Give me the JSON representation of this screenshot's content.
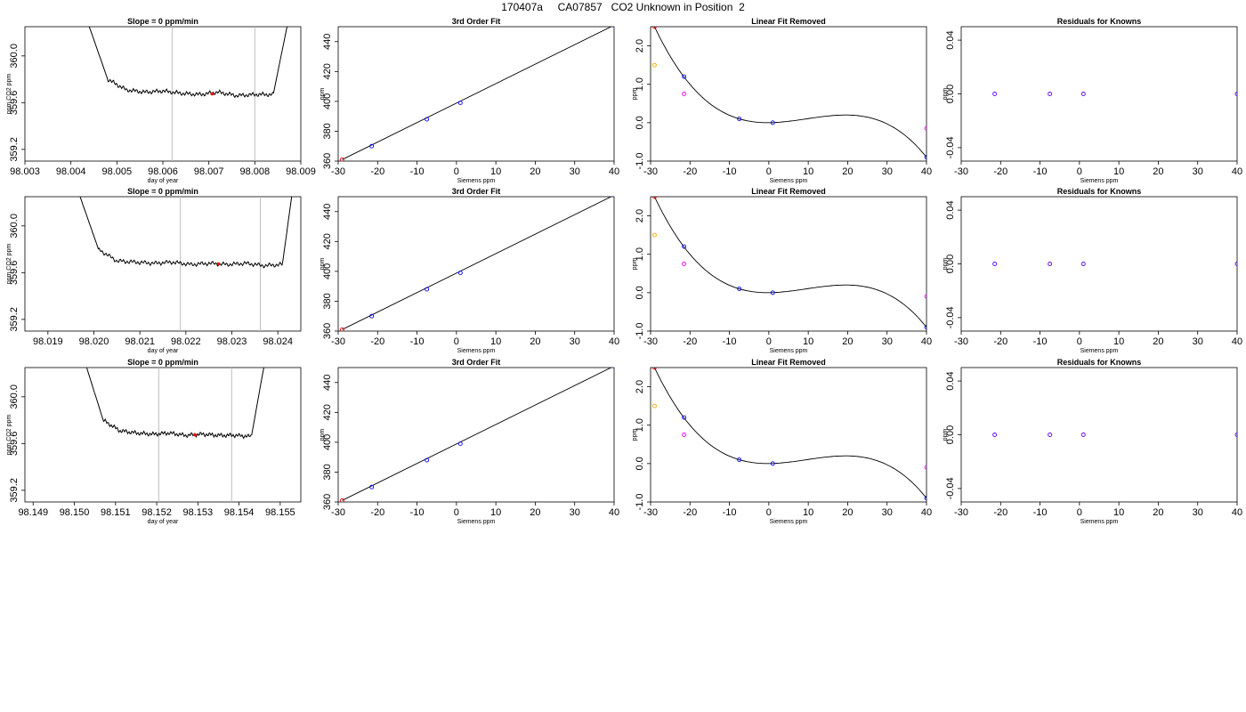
{
  "header": {
    "title": "170407a     CA07857   CO2 Unknown in Position  2"
  },
  "colors": {
    "trace": "#000000",
    "knowns": "#0000ff",
    "first": "#ff0000",
    "linear_points": "#ff00ff",
    "orange_point": "#ffa500",
    "window_lines": "#bebebe",
    "residuals": "#5a00ff"
  },
  "chart_data": [
    {
      "type": "line",
      "title": "Slope =  0  ppm/min",
      "xlabel": "day of year",
      "ylabel": "ppm CO2 ppm",
      "xlim": [
        98.003,
        98.009
      ],
      "ylim": [
        359.1,
        360.25
      ],
      "xticks": [
        "98.003",
        "98.004",
        "98.005",
        "98.006",
        "98.007",
        "98.008",
        "98.009"
      ],
      "yticks": [
        "359.2",
        "359.6",
        "360.0"
      ],
      "x": [
        98.0044,
        98.0048,
        98.0052,
        98.0056,
        98.006,
        98.0064,
        98.0068,
        98.0072,
        98.0076,
        98.008,
        98.0084,
        98.0087
      ],
      "y": [
        360.25,
        359.8,
        359.71,
        359.69,
        359.7,
        359.68,
        359.67,
        359.69,
        359.66,
        359.67,
        359.67,
        360.25
      ],
      "window": [
        98.0062,
        98.008
      ],
      "marker": {
        "x": 98.00707,
        "y": 359.675
      }
    },
    {
      "type": "scatter",
      "title": "3rd Order Fit",
      "xlabel": "Siemens ppm",
      "ylabel": "ppm",
      "xlim": [
        -30,
        40
      ],
      "ylim": [
        360,
        450
      ],
      "xticks": [
        "-30",
        "-20",
        "-10",
        "0",
        "10",
        "20",
        "30",
        "40"
      ],
      "yticks": [
        "360",
        "380",
        "400",
        "420",
        "440"
      ],
      "x": [
        -29,
        -21.5,
        -7.5,
        1,
        40
      ],
      "y": [
        361,
        370,
        388,
        399,
        451
      ],
      "fit": "line"
    },
    {
      "type": "scatter",
      "title": "Linear Fit Removed",
      "xlabel": "Siemens ppm",
      "ylabel": "ppm",
      "xlim": [
        -30,
        40
      ],
      "ylim": [
        -1,
        2.5
      ],
      "xticks": [
        "-30",
        "-20",
        "-10",
        "0",
        "10",
        "20",
        "30",
        "40"
      ],
      "yticks": [
        "-1.0",
        "0.0",
        "1.0",
        "2.0"
      ],
      "x": [
        -29,
        -21.5,
        -7.5,
        1,
        40
      ],
      "y": [
        2.5,
        1.2,
        0.1,
        0.0,
        -0.9
      ],
      "extra_points": [
        {
          "x": -29,
          "y": 1.5
        },
        {
          "x": -21.5,
          "y": 0.75
        },
        {
          "x": 40,
          "y": -0.15
        }
      ],
      "fit": "cubic"
    },
    {
      "type": "scatter",
      "title": "Residuals for Knowns",
      "xlabel": "Siemens ppm",
      "ylabel": "ppm",
      "xlim": [
        -30,
        40
      ],
      "ylim": [
        -0.05,
        0.05
      ],
      "xticks": [
        "-30",
        "-20",
        "-10",
        "0",
        "10",
        "20",
        "30",
        "40"
      ],
      "yticks": [
        "-0.04",
        "0.00",
        "0.04"
      ],
      "x": [
        -21.5,
        -7.5,
        1,
        40
      ],
      "y": [
        0,
        0,
        0,
        0
      ]
    },
    {
      "type": "line",
      "title": "Slope =  0  ppm/min",
      "xlabel": "day of year",
      "ylabel": "ppm CO2 ppm",
      "xlim": [
        98.0185,
        98.0245
      ],
      "ylim": [
        359.1,
        360.25
      ],
      "xticks": [
        "98.019",
        "98.020",
        "98.021",
        "98.022",
        "98.023",
        "98.024"
      ],
      "yticks": [
        "359.2",
        "359.6",
        "360.0"
      ],
      "x": [
        98.0197,
        98.0201,
        98.0205,
        98.0209,
        98.0213,
        98.0217,
        98.0221,
        98.0225,
        98.0229,
        98.0233,
        98.0237,
        98.0241,
        98.0243
      ],
      "y": [
        360.25,
        359.8,
        359.7,
        359.69,
        359.68,
        359.69,
        359.67,
        359.68,
        359.67,
        359.68,
        359.66,
        359.67,
        360.25
      ],
      "window": [
        98.02188,
        98.02362
      ],
      "marker": {
        "x": 98.02271,
        "y": 359.675
      }
    },
    {
      "type": "scatter",
      "title": "3rd Order Fit",
      "xlabel": "Siemens ppm",
      "ylabel": "ppm",
      "xlim": [
        -30,
        40
      ],
      "ylim": [
        360,
        450
      ],
      "xticks": [
        "-30",
        "-20",
        "-10",
        "0",
        "10",
        "20",
        "30",
        "40"
      ],
      "yticks": [
        "360",
        "380",
        "400",
        "420",
        "440"
      ],
      "x": [
        -29,
        -21.5,
        -7.5,
        1,
        40
      ],
      "y": [
        361,
        370,
        388,
        399,
        451
      ],
      "fit": "line"
    },
    {
      "type": "scatter",
      "title": "Linear Fit Removed",
      "xlabel": "Siemens ppm",
      "ylabel": "ppm",
      "xlim": [
        -30,
        40
      ],
      "ylim": [
        -1,
        2.5
      ],
      "xticks": [
        "-30",
        "-20",
        "-10",
        "0",
        "10",
        "20",
        "30",
        "40"
      ],
      "yticks": [
        "-1.0",
        "0.0",
        "1.0",
        "2.0"
      ],
      "x": [
        -29,
        -21.5,
        -7.5,
        1,
        40
      ],
      "y": [
        2.5,
        1.2,
        0.1,
        0.0,
        -0.9
      ],
      "extra_points": [
        {
          "x": -29,
          "y": 1.5
        },
        {
          "x": -21.5,
          "y": 0.75
        },
        {
          "x": 40,
          "y": -0.1
        }
      ],
      "fit": "cubic"
    },
    {
      "type": "scatter",
      "title": "Residuals for Knowns",
      "xlabel": "Siemens ppm",
      "ylabel": "ppm",
      "xlim": [
        -30,
        40
      ],
      "ylim": [
        -0.05,
        0.05
      ],
      "xticks": [
        "-30",
        "-20",
        "-10",
        "0",
        "10",
        "20",
        "30",
        "40"
      ],
      "yticks": [
        "-0.04",
        "0.00",
        "0.04"
      ],
      "x": [
        -21.5,
        -7.5,
        1,
        40
      ],
      "y": [
        0,
        0,
        0,
        0
      ]
    },
    {
      "type": "line",
      "title": "Slope =  0  ppm/min",
      "xlabel": "day of year",
      "ylabel": "ppm CO2 ppm",
      "xlim": [
        98.1488,
        98.1555
      ],
      "ylim": [
        359.1,
        360.25
      ],
      "xticks": [
        "98.149",
        "98.150",
        "98.151",
        "98.152",
        "98.153",
        "98.154",
        "98.155"
      ],
      "yticks": [
        "359.2",
        "359.6",
        "360.0"
      ],
      "x": [
        98.1503,
        98.1507,
        98.1511,
        98.1515,
        98.1519,
        98.1523,
        98.1527,
        98.1531,
        98.1535,
        98.1539,
        98.1543,
        98.1546
      ],
      "y": [
        360.25,
        359.8,
        359.71,
        359.69,
        359.68,
        359.69,
        359.67,
        359.68,
        359.67,
        359.67,
        359.66,
        360.25
      ],
      "window": [
        98.15205,
        98.15382
      ],
      "marker": {
        "x": 98.15293,
        "y": 359.675
      }
    },
    {
      "type": "scatter",
      "title": "3rd Order Fit",
      "xlabel": "Siemens ppm",
      "ylabel": "ppm",
      "xlim": [
        -30,
        40
      ],
      "ylim": [
        360,
        450
      ],
      "xticks": [
        "-30",
        "-20",
        "-10",
        "0",
        "10",
        "20",
        "30",
        "40"
      ],
      "yticks": [
        "360",
        "380",
        "400",
        "420",
        "440"
      ],
      "x": [
        -29,
        -21.5,
        -7.5,
        1,
        40
      ],
      "y": [
        361,
        370,
        388,
        399,
        451
      ],
      "fit": "line"
    },
    {
      "type": "scatter",
      "title": "Linear Fit Removed",
      "xlabel": "Siemens ppm",
      "ylabel": "ppm",
      "xlim": [
        -30,
        40
      ],
      "ylim": [
        -1,
        2.5
      ],
      "xticks": [
        "-30",
        "-20",
        "-10",
        "0",
        "10",
        "20",
        "30",
        "40"
      ],
      "yticks": [
        "-1.0",
        "0.0",
        "1.0",
        "2.0"
      ],
      "x": [
        -29,
        -21.5,
        -7.5,
        1,
        40
      ],
      "y": [
        2.5,
        1.2,
        0.1,
        0.0,
        -0.9
      ],
      "extra_points": [
        {
          "x": -29,
          "y": 1.5
        },
        {
          "x": -21.5,
          "y": 0.75
        },
        {
          "x": 40,
          "y": -0.1
        }
      ],
      "fit": "cubic"
    },
    {
      "type": "scatter",
      "title": "Residuals for Knowns",
      "xlabel": "Siemens ppm",
      "ylabel": "ppm",
      "xlim": [
        -30,
        40
      ],
      "ylim": [
        -0.05,
        0.05
      ],
      "xticks": [
        "-30",
        "-20",
        "-10",
        "0",
        "10",
        "20",
        "30",
        "40"
      ],
      "yticks": [
        "-0.04",
        "0.00",
        "0.04"
      ],
      "x": [
        -21.5,
        -7.5,
        1,
        40
      ],
      "y": [
        0,
        0,
        0,
        0
      ]
    }
  ]
}
